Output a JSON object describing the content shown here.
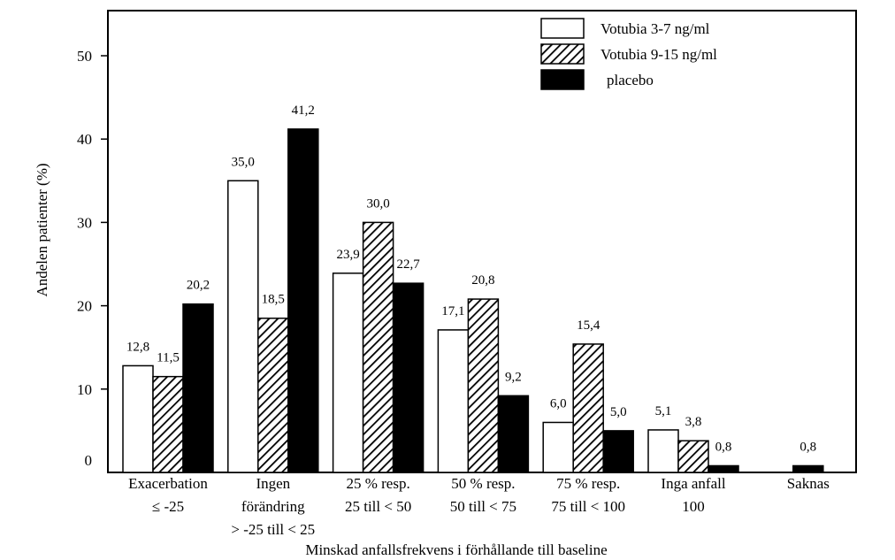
{
  "chart_data": {
    "type": "bar",
    "title": "",
    "xlabel": "Minskad anfallsfrekvens i förhållande till baseline",
    "ylabel": "Andelen patienter (%)",
    "ylim": [
      0,
      55
    ],
    "yticks": [
      0,
      10,
      20,
      30,
      40,
      50
    ],
    "ytick_labels": [
      "0",
      "10",
      "20",
      "30",
      "40",
      "50"
    ],
    "grid": false,
    "legend_position": "top-right",
    "categories": [
      [
        "Exacerbation",
        "≤ -25"
      ],
      [
        "Ingen",
        "förändring",
        "> -25 till < 25"
      ],
      [
        "25 % resp.",
        "25 till < 50"
      ],
      [
        "50 % resp.",
        "50 till < 75"
      ],
      [
        "75 % resp.",
        "75 till < 100"
      ],
      [
        "Inga anfall",
        "100"
      ],
      [
        "Saknas"
      ]
    ],
    "series": [
      {
        "name": "Votubia 3-7 ng/ml",
        "style": "white",
        "values": [
          12.8,
          35.0,
          23.9,
          17.1,
          6.0,
          5.1,
          null
        ],
        "labels": [
          "12,8",
          "35,0",
          "23,9",
          "17,1",
          "6,0",
          "5,1",
          ""
        ]
      },
      {
        "name": "Votubia 9-15 ng/ml",
        "style": "hatched",
        "values": [
          11.5,
          18.5,
          30.0,
          20.8,
          15.4,
          3.8,
          null
        ],
        "labels": [
          "11,5",
          "18,5",
          "30,0",
          "20,8",
          "15,4",
          "3,8",
          ""
        ]
      },
      {
        "name": "placebo",
        "style": "black",
        "values": [
          20.2,
          41.2,
          22.7,
          9.2,
          5.0,
          0.8,
          0.8
        ],
        "labels": [
          "20,2",
          "41,2",
          "22,7",
          "9,2",
          "5,0",
          "0,8",
          "0,8"
        ]
      }
    ]
  }
}
